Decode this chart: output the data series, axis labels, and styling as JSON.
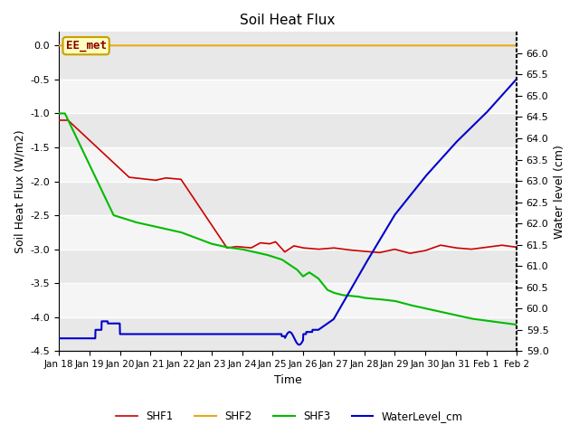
{
  "title": "Soil Heat Flux",
  "ylabel_left": "Soil Heat Flux (W/m2)",
  "ylabel_right": "Water level (cm)",
  "xlabel": "Time",
  "ylim_left": [
    -4.5,
    0.2
  ],
  "ylim_right": [
    59.0,
    66.5
  ],
  "yticks_left": [
    0.0,
    -0.5,
    -1.0,
    -1.5,
    -2.0,
    -2.5,
    -3.0,
    -3.5,
    -4.0,
    -4.5
  ],
  "yticks_right": [
    59.0,
    59.5,
    60.0,
    60.5,
    61.0,
    61.5,
    62.0,
    62.5,
    63.0,
    63.5,
    64.0,
    64.5,
    65.0,
    65.5,
    66.0
  ],
  "colors": {
    "SHF1": "#cc0000",
    "SHF2": "#e6a817",
    "SHF3": "#00bb00",
    "WaterLevel_cm": "#0000cc"
  },
  "bg_color": "#e8e8e8",
  "annotation_text": "EE_met",
  "annotation_box_color": "#c8a000",
  "annotation_box_fill": "#ffffc0",
  "annotation_text_color": "#880000",
  "grid_color": "#ffffff",
  "band_color1": "#e8e8e8",
  "band_color2": "#f5f5f5"
}
